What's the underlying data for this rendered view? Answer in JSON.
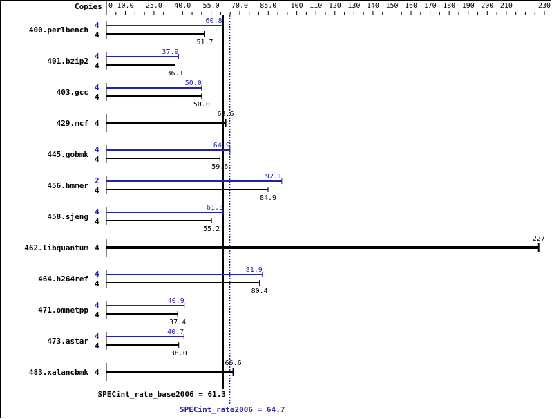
{
  "chart_data": {
    "type": "bar",
    "orientation": "horizontal",
    "header_label": "Copies",
    "xlim": [
      0,
      230
    ],
    "tick_labels": [
      "0",
      "10.0",
      "25.0",
      "40.0",
      "55.0",
      "70.0",
      "85.0",
      "100",
      "110",
      "120",
      "130",
      "140",
      "150",
      "160",
      "170",
      "180",
      "190",
      "200",
      "210",
      "230"
    ],
    "tick_values": [
      0,
      10,
      25,
      40,
      55,
      70,
      85,
      100,
      110,
      120,
      130,
      140,
      150,
      160,
      170,
      180,
      190,
      200,
      210,
      230
    ],
    "colors": {
      "base": "#000000",
      "peak": "#2222aa"
    },
    "benchmarks": [
      {
        "name": "400.perlbench",
        "peak_copies": "4",
        "peak": 60.8,
        "peak_label": "60.8",
        "base_copies": "4",
        "base": 51.7,
        "base_label": "51.7"
      },
      {
        "name": "401.bzip2",
        "peak_copies": "4",
        "peak": 37.9,
        "peak_label": "37.9",
        "base_copies": "4",
        "base": 36.1,
        "base_label": "36.1"
      },
      {
        "name": "403.gcc",
        "peak_copies": "4",
        "peak": 50.0,
        "peak_label": "50.0",
        "base_copies": "4",
        "base": 50.0,
        "base_label": "50.0"
      },
      {
        "name": "429.mcf",
        "base_copies": "4",
        "base": 62.6,
        "base_label": "62.6",
        "single": true
      },
      {
        "name": "445.gobmk",
        "peak_copies": "4",
        "peak": 64.9,
        "peak_label": "64.9",
        "base_copies": "4",
        "base": 59.6,
        "base_label": "59.6"
      },
      {
        "name": "456.hmmer",
        "peak_copies": "2",
        "peak": 92.1,
        "peak_label": "92.1",
        "base_copies": "4",
        "base": 84.9,
        "base_label": "84.9"
      },
      {
        "name": "458.sjeng",
        "peak_copies": "4",
        "peak": 61.3,
        "peak_label": "61.3",
        "base_copies": "4",
        "base": 55.2,
        "base_label": "55.2"
      },
      {
        "name": "462.libquantum",
        "base_copies": "4",
        "base": 227,
        "base_label": "227",
        "single": true
      },
      {
        "name": "464.h264ref",
        "peak_copies": "4",
        "peak": 81.9,
        "peak_label": "81.9",
        "base_copies": "4",
        "base": 80.4,
        "base_label": "80.4"
      },
      {
        "name": "471.omnetpp",
        "peak_copies": "4",
        "peak": 40.9,
        "peak_label": "40.9",
        "base_copies": "4",
        "base": 37.4,
        "base_label": "37.4"
      },
      {
        "name": "473.astar",
        "peak_copies": "4",
        "peak": 40.7,
        "peak_label": "40.7",
        "base_copies": "4",
        "base": 38.0,
        "base_label": "38.0"
      },
      {
        "name": "483.xalancbmk",
        "base_copies": "4",
        "base": 66.6,
        "base_label": "66.6",
        "single": true
      }
    ],
    "reference_lines": [
      {
        "label": "SPECint_rate_base2006 = 61.3",
        "value": 61.3,
        "style": "solid",
        "color": "#000000"
      },
      {
        "label": "SPECint_rate2006 = 64.7",
        "value": 64.7,
        "style": "dotted",
        "color": "#2222aa"
      }
    ]
  }
}
